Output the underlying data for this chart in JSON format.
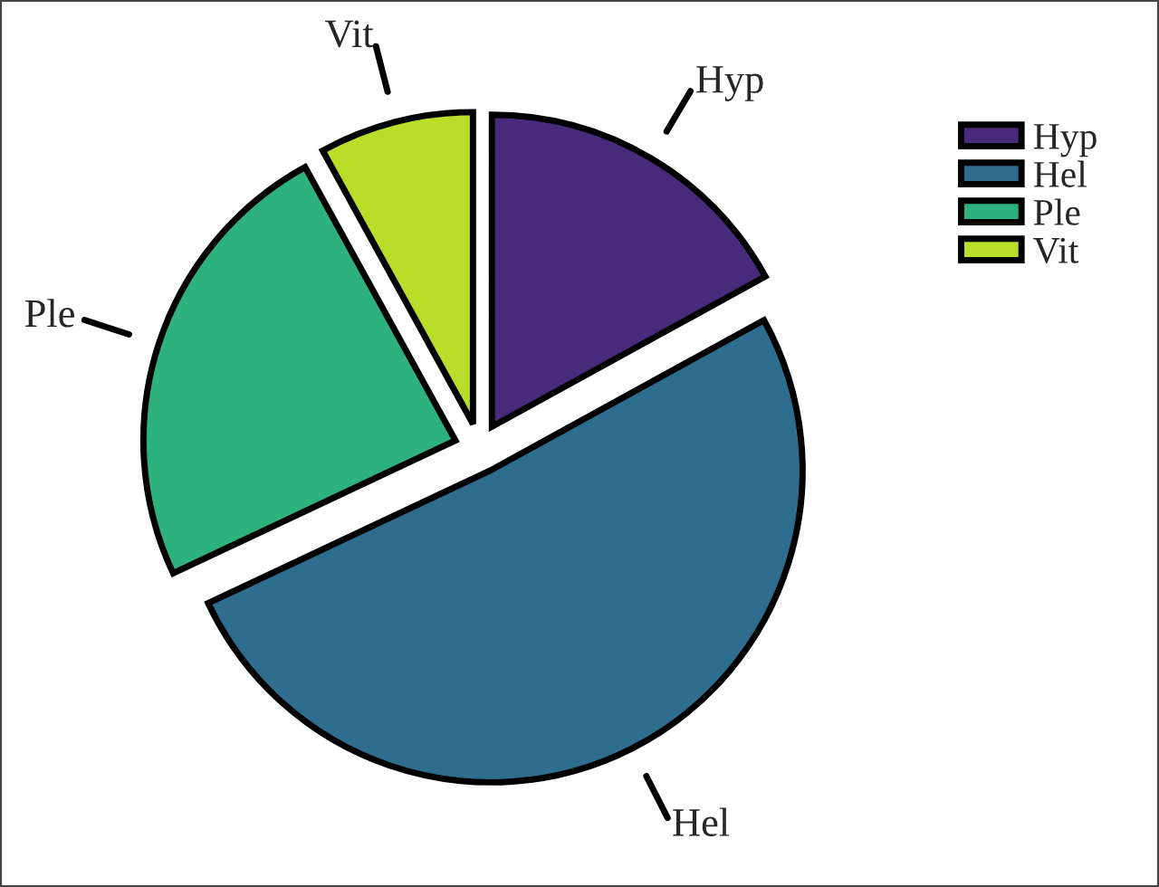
{
  "chart_data": {
    "type": "pie",
    "categories": [
      "Hyp",
      "Hel",
      "Ple",
      "Vit"
    ],
    "values": [
      17,
      51,
      24,
      8
    ],
    "colors": [
      "#472a7a",
      "#2e6d8e",
      "#2db27d",
      "#b8de29"
    ],
    "legend": "right"
  }
}
